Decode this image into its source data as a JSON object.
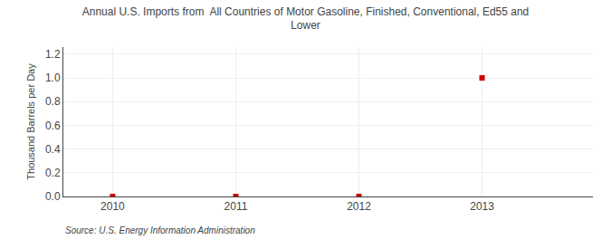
{
  "chart_data": {
    "type": "scatter",
    "title": "Annual U.S. Imports from  All Countries of Motor Gasoline, Finished, Conventional, Ed55 and\nLower",
    "ylabel": "Thousand Barrels per Day",
    "annotations": [
      "Source: U.S. Energy Information Administration"
    ],
    "x": [
      2010,
      2011,
      2012,
      2013
    ],
    "values": [
      0.0,
      0.0,
      0.0,
      1.0
    ],
    "color": "#cc0000",
    "marker": "square",
    "xlim": [
      2009.6,
      2013.9
    ],
    "ylim": [
      0.0,
      1.26
    ],
    "xticks": [
      2010,
      2011,
      2012,
      2013
    ],
    "yticks": [
      {
        "value": 0.0,
        "label": "0.0"
      },
      0.2,
      0.4,
      0.6,
      0.8,
      {
        "value": 1.0,
        "label": "1.0"
      },
      1.2
    ],
    "grid": true
  }
}
